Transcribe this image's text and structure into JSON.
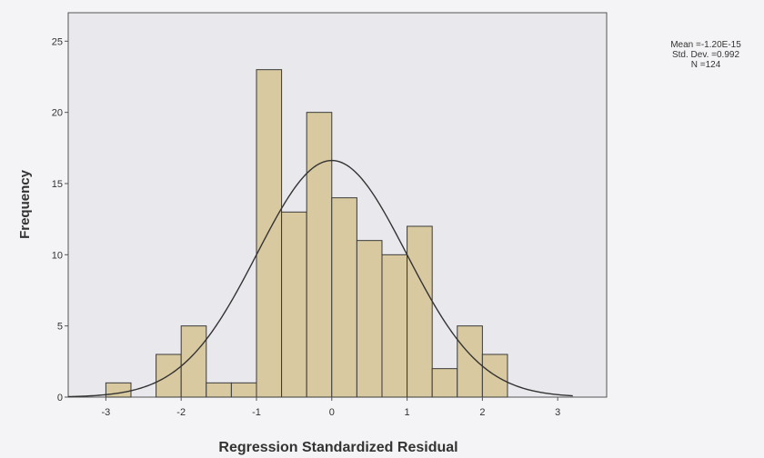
{
  "chart_data": {
    "type": "bar",
    "title": "",
    "xlabel": "Regression Standardized Residual",
    "ylabel": "Frequency",
    "bin_width": 0.3333,
    "bin_edges": [
      -3.0,
      -2.6667,
      -2.3333,
      -2.0,
      -1.6667,
      -1.3333,
      -1.0,
      -0.6667,
      -0.3333,
      0.0,
      0.3333,
      0.6667,
      1.0,
      1.3333,
      1.6667,
      2.0,
      2.3333
    ],
    "values": [
      1,
      0,
      3,
      5,
      1,
      1,
      23,
      13,
      20,
      14,
      11,
      10,
      12,
      2,
      5,
      3
    ],
    "xlim": [
      -3.5,
      3.65
    ],
    "ylim": [
      0,
      27
    ],
    "x_ticks": [
      -3,
      -2,
      -1,
      0,
      1,
      2,
      3
    ],
    "y_ticks": [
      0,
      5,
      10,
      15,
      20,
      25
    ],
    "normal_curve": {
      "mean": 0,
      "sd": 0.992,
      "n": 124
    },
    "grid": false,
    "legend": "none",
    "colors": {
      "bar_fill": "#d8c9a0",
      "bar_stroke": "#3a3a3a",
      "plot_background": "#e9e8ed",
      "curve": "#333333"
    }
  },
  "stats": {
    "mean_line": "Mean =-1.20E-15",
    "sd_line": "Std. Dev. =0.992",
    "n_line": "N =124"
  }
}
